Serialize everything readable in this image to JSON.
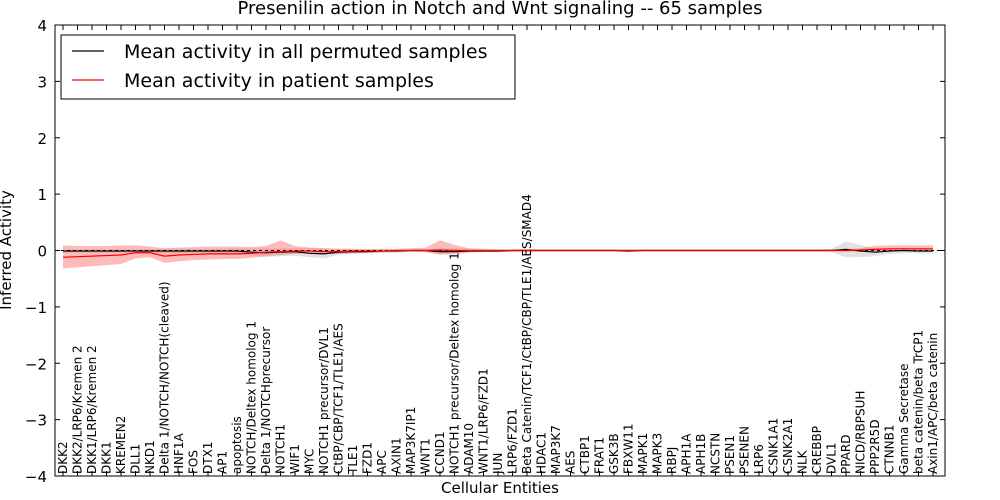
{
  "chart_data": {
    "type": "line",
    "title": "Presenilin action in Notch and Wnt signaling -- 65 samples",
    "xlabel": "Cellular Entities",
    "ylabel": "Inferred Activity",
    "ylim": [
      -4,
      4
    ],
    "yticks": [
      "−4",
      "−3",
      "−2",
      "−1",
      "0",
      "1",
      "2",
      "3",
      "4"
    ],
    "legend_position": "top-left",
    "categories": [
      "DKK2",
      "DKK2/LRP6/Kremen 2",
      "DKK1/LRP6/Kremen 2",
      "DKK1",
      "KREMEN2",
      "DLL1",
      "NKD1",
      "Delta 1/NOTCH/NOTCH(cleaved)",
      "HNF1A",
      "FOS",
      "DTX1",
      "AP1",
      "apoptosis",
      "NOTCH/Deltex homolog 1",
      "Delta 1/NOTCHprecursor",
      "NOTCH1",
      "WIF1",
      "MYC",
      "NOTCH1 precursor/DVL1",
      "CtBP/CBP/TCF1/TLE1/AES",
      "TLE1",
      "FZD1",
      "APC",
      "AXIN1",
      "MAP3K7IP1",
      "WNT1",
      "CCND1",
      "NOTCH1 precursor/Deltex homolog 1",
      "ADAM10",
      "WNT1/LRP6/FZD1",
      "JUN",
      "LRP6/FZD1",
      "Beta Catenin/TCF1/CtBP/CBP/TLE1/AES/SMAD4",
      "HDAC1",
      "MAP3K7",
      "AES",
      "CTBP1",
      "FRAT1",
      "GSK3B",
      "FBXW11",
      "MAPK1",
      "MAPK3",
      "RBPJ",
      "APH1A",
      "APH1B",
      "NCSTN",
      "PSEN1",
      "PSENEN",
      "LRP6",
      "CSNK1A1",
      "CSNK2A1",
      "NLK",
      "CREBBP",
      "DVL1",
      "PPARD",
      "NICD/RBPSUH",
      "PPP2R5D",
      "CTNNB1",
      "Gamma Secretase",
      "beta catenin/beta TrCP1",
      "Axin1/APC/beta catenin"
    ],
    "series": [
      {
        "name": "Mean activity in all permuted samples",
        "color": "#000000",
        "values": [
          -0.01,
          -0.01,
          -0.01,
          -0.01,
          -0.01,
          -0.01,
          -0.01,
          -0.01,
          -0.01,
          -0.01,
          -0.01,
          -0.01,
          -0.01,
          -0.03,
          -0.04,
          -0.03,
          -0.02,
          -0.05,
          -0.06,
          -0.03,
          -0.02,
          -0.02,
          -0.01,
          -0.01,
          0.0,
          0.0,
          -0.02,
          -0.02,
          -0.01,
          -0.01,
          -0.01,
          0.0,
          0.0,
          0.0,
          0.0,
          0.0,
          0.0,
          0.0,
          0.0,
          -0.01,
          0.0,
          0.0,
          0.0,
          0.0,
          0.0,
          0.0,
          0.0,
          0.0,
          0.0,
          0.0,
          0.0,
          0.0,
          0.0,
          0.0,
          0.02,
          -0.01,
          -0.03,
          -0.01,
          0.0,
          -0.01,
          -0.01
        ],
        "band_low": [
          -0.04,
          -0.04,
          -0.04,
          -0.04,
          -0.04,
          -0.04,
          -0.04,
          -0.05,
          -0.05,
          -0.05,
          -0.05,
          -0.05,
          -0.06,
          -0.09,
          -0.12,
          -0.1,
          -0.09,
          -0.12,
          -0.14,
          -0.08,
          -0.06,
          -0.05,
          -0.04,
          -0.04,
          -0.02,
          -0.02,
          -0.07,
          -0.07,
          -0.04,
          -0.03,
          -0.03,
          -0.02,
          -0.02,
          -0.02,
          -0.02,
          -0.02,
          -0.02,
          -0.02,
          -0.02,
          -0.03,
          -0.02,
          -0.02,
          -0.02,
          -0.02,
          -0.02,
          -0.02,
          -0.02,
          -0.02,
          -0.02,
          -0.02,
          -0.02,
          -0.02,
          -0.02,
          -0.03,
          -0.12,
          -0.12,
          -0.1,
          -0.06,
          -0.05,
          -0.05,
          -0.05
        ],
        "band_high": [
          0.02,
          0.02,
          0.02,
          0.02,
          0.02,
          0.02,
          0.02,
          0.03,
          0.03,
          0.03,
          0.03,
          0.03,
          0.04,
          0.04,
          0.04,
          0.04,
          0.04,
          0.05,
          0.04,
          0.03,
          0.03,
          0.03,
          0.02,
          0.02,
          0.02,
          0.02,
          0.04,
          0.04,
          0.03,
          0.02,
          0.02,
          0.02,
          0.02,
          0.02,
          0.02,
          0.02,
          0.02,
          0.02,
          0.02,
          0.02,
          0.02,
          0.02,
          0.02,
          0.02,
          0.02,
          0.02,
          0.02,
          0.02,
          0.02,
          0.02,
          0.02,
          0.02,
          0.02,
          0.03,
          0.16,
          0.1,
          0.04,
          0.03,
          0.03,
          0.03,
          0.03
        ]
      },
      {
        "name": "Mean activity in patient samples",
        "color": "#ff0000",
        "values": [
          -0.12,
          -0.11,
          -0.1,
          -0.09,
          -0.08,
          -0.04,
          -0.04,
          -0.1,
          -0.08,
          -0.07,
          -0.06,
          -0.06,
          -0.06,
          -0.05,
          -0.03,
          -0.02,
          -0.01,
          -0.01,
          -0.02,
          -0.02,
          -0.01,
          -0.01,
          -0.01,
          0.0,
          0.0,
          0.0,
          0.01,
          0.0,
          0.0,
          0.0,
          0.0,
          0.0,
          0.0,
          0.0,
          0.0,
          0.0,
          0.0,
          0.0,
          0.0,
          0.0,
          0.0,
          0.0,
          0.0,
          0.0,
          0.0,
          0.0,
          0.0,
          0.0,
          0.0,
          0.0,
          0.0,
          0.0,
          0.0,
          0.0,
          0.0,
          0.01,
          0.02,
          0.03,
          0.03,
          0.03,
          0.03
        ],
        "band_low": [
          -0.32,
          -0.3,
          -0.28,
          -0.26,
          -0.24,
          -0.14,
          -0.12,
          -0.22,
          -0.19,
          -0.17,
          -0.16,
          -0.15,
          -0.15,
          -0.13,
          -0.1,
          -0.08,
          -0.06,
          -0.05,
          -0.06,
          -0.06,
          -0.05,
          -0.04,
          -0.03,
          -0.02,
          -0.02,
          -0.03,
          -0.07,
          -0.05,
          -0.03,
          -0.02,
          -0.02,
          -0.02,
          -0.02,
          -0.01,
          -0.01,
          -0.01,
          -0.01,
          -0.01,
          -0.01,
          -0.01,
          -0.01,
          -0.01,
          -0.01,
          -0.01,
          -0.01,
          -0.01,
          -0.01,
          -0.01,
          -0.01,
          -0.01,
          -0.01,
          -0.01,
          -0.01,
          -0.01,
          -0.02,
          -0.02,
          -0.02,
          -0.01,
          -0.01,
          -0.01,
          -0.01
        ],
        "band_high": [
          0.09,
          0.08,
          0.08,
          0.08,
          0.09,
          0.09,
          0.07,
          0.04,
          0.05,
          0.06,
          0.07,
          0.07,
          0.07,
          0.06,
          0.08,
          0.18,
          0.08,
          0.05,
          0.04,
          0.03,
          0.03,
          0.02,
          0.03,
          0.03,
          0.04,
          0.05,
          0.18,
          0.1,
          0.04,
          0.03,
          0.02,
          0.02,
          0.02,
          0.02,
          0.02,
          0.02,
          0.02,
          0.02,
          0.02,
          0.02,
          0.02,
          0.02,
          0.02,
          0.02,
          0.02,
          0.02,
          0.02,
          0.02,
          0.02,
          0.02,
          0.02,
          0.02,
          0.02,
          0.02,
          0.02,
          0.04,
          0.08,
          0.09,
          0.09,
          0.09,
          0.09
        ]
      }
    ]
  }
}
